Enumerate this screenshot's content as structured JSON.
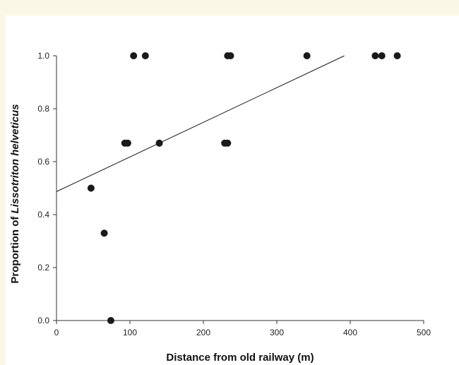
{
  "chart_data": {
    "type": "scatter",
    "title": "",
    "xlabel": "Distance from old railway (m)",
    "ylabel_prefix": "Proportion of ",
    "ylabel_italic": "Lissotriton helveticus",
    "xlim": [
      0,
      500
    ],
    "ylim": [
      0,
      1.0
    ],
    "x_ticks": [
      0,
      100,
      200,
      300,
      400,
      500
    ],
    "y_ticks": [
      0.0,
      0.2,
      0.4,
      0.6,
      0.8,
      1.0
    ],
    "x_tick_labels": [
      "0",
      "100",
      "200",
      "300",
      "400",
      "500"
    ],
    "y_tick_labels": [
      "0.0",
      "0.2",
      "0.4",
      "0.6",
      "0.8",
      "1.0"
    ],
    "grid": false,
    "points": [
      {
        "x": 47,
        "y": 0.5
      },
      {
        "x": 65,
        "y": 0.33
      },
      {
        "x": 74,
        "y": 0.0
      },
      {
        "x": 93,
        "y": 0.67
      },
      {
        "x": 97,
        "y": 0.67
      },
      {
        "x": 105,
        "y": 1.0
      },
      {
        "x": 121,
        "y": 1.0
      },
      {
        "x": 140,
        "y": 0.67
      },
      {
        "x": 229,
        "y": 0.67
      },
      {
        "x": 233,
        "y": 0.67
      },
      {
        "x": 233,
        "y": 1.0
      },
      {
        "x": 237,
        "y": 1.0
      },
      {
        "x": 341,
        "y": 1.0
      },
      {
        "x": 434,
        "y": 1.0
      },
      {
        "x": 443,
        "y": 1.0
      },
      {
        "x": 464,
        "y": 1.0
      }
    ],
    "trendline": {
      "x": [
        0,
        392
      ],
      "y": [
        0.487,
        1.0
      ]
    },
    "colors": {
      "points": "#1a1a1a",
      "line": "#1a1a1a",
      "axis": "#333333",
      "background": "#fbf7e6"
    }
  }
}
